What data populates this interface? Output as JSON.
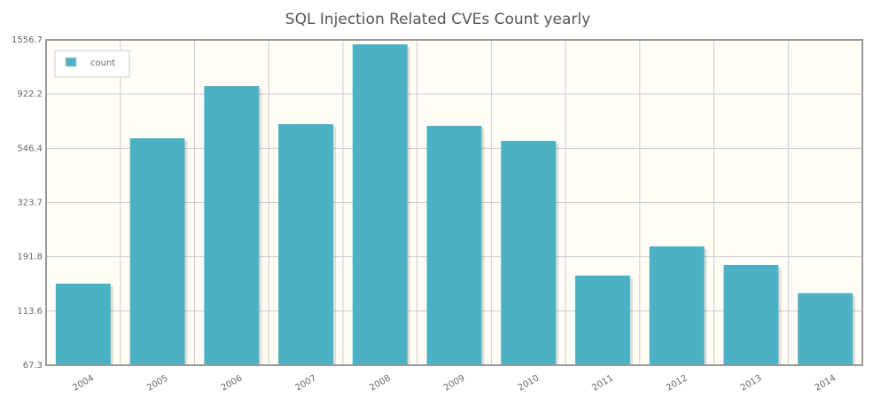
{
  "chart_data": {
    "type": "bar",
    "title": "SQL Injection Related CVEs Count yearly",
    "categories": [
      "2004",
      "2005",
      "2006",
      "2007",
      "2008",
      "2009",
      "2010",
      "2011",
      "2012",
      "2013",
      "2014"
    ],
    "series": [
      {
        "name": "count",
        "color": "#4bb2c5",
        "values": [
          148,
          602,
          997,
          690,
          1492,
          679,
          587,
          160,
          212,
          177,
          135
        ]
      }
    ],
    "ylim": [
      67.3,
      1556.7
    ],
    "yticks": [
      67.3,
      113.6,
      191.8,
      323.7,
      546.4,
      922.2,
      1556.7
    ],
    "log_scale": true,
    "grid": true,
    "legend": "top-left"
  }
}
